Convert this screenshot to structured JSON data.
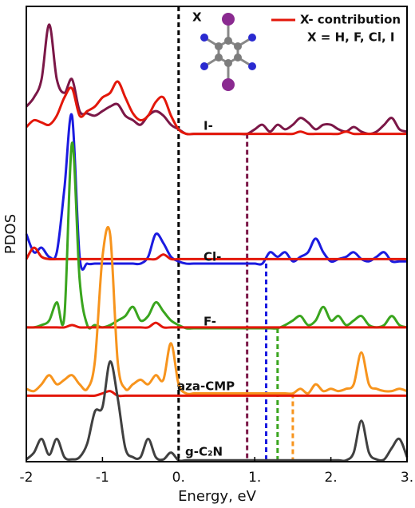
{
  "chart_data": {
    "type": "line",
    "xlabel": "Energy, eV",
    "ylabel": "PDOS",
    "xlim": [
      -2,
      3
    ],
    "ylim": [
      0,
      100
    ],
    "xticks": [
      -2,
      -1,
      {
        "value": 0,
        "label": "0."
      },
      {
        "value": 1,
        "label": "1."
      },
      {
        "value": 2,
        "label": "2."
      },
      {
        "value": 3,
        "label": "3."
      }
    ],
    "fermi_level": 0,
    "legend": {
      "label": "X- contribution",
      "color": "#e3170a"
    },
    "annotation": "X = H, F, Cl, I",
    "molecule_label": "X",
    "x": [
      -2.0,
      -1.9,
      -1.8,
      -1.7,
      -1.6,
      -1.5,
      -1.4,
      -1.3,
      -1.2,
      -1.1,
      -1.0,
      -0.9,
      -0.8,
      -0.7,
      -0.6,
      -0.5,
      -0.4,
      -0.3,
      -0.2,
      -0.1,
      0.0,
      0.1,
      0.2,
      0.3,
      0.4,
      0.5,
      0.6,
      0.7,
      0.8,
      0.9,
      1.0,
      1.1,
      1.2,
      1.3,
      1.4,
      1.5,
      1.6,
      1.7,
      1.8,
      1.9,
      2.0,
      2.1,
      2.2,
      2.3,
      2.4,
      2.5,
      2.6,
      2.7,
      2.8,
      2.9,
      3.0
    ],
    "series": [
      {
        "name": "I-",
        "color": "#7b1747",
        "edge": 0.9,
        "values": [
          78,
          80,
          84,
          96,
          84,
          81,
          84,
          77,
          76.5,
          76,
          77,
          78,
          78.5,
          76,
          75,
          74,
          76,
          77,
          76,
          74,
          73,
          72,
          72,
          72,
          72,
          72,
          72,
          72,
          72,
          72,
          73,
          74,
          72.5,
          74,
          73,
          74,
          75.5,
          74.5,
          73,
          74,
          74,
          73,
          72.5,
          73.5,
          72.5,
          72,
          72.5,
          74,
          75.5,
          73,
          72.5
        ],
        "contribution": [
          73.5,
          75,
          74.5,
          74,
          76,
          80,
          82,
          76,
          77,
          78,
          80,
          81,
          83.5,
          80,
          76.5,
          75,
          76,
          79,
          80,
          76,
          73,
          72,
          72,
          72,
          72,
          72,
          72,
          72,
          72,
          72,
          72,
          72,
          72,
          72,
          72,
          72,
          72.5,
          72,
          72,
          72,
          72,
          72,
          72.5,
          72,
          72,
          72,
          72,
          72,
          72,
          72,
          72
        ]
      },
      {
        "name": "Cl-",
        "color": "#1b1be0",
        "edge": 1.15,
        "values": [
          50,
          46,
          47,
          45,
          46,
          60,
          76,
          45,
          43.5,
          43.5,
          43.5,
          43.5,
          43.5,
          43.5,
          43.5,
          43.5,
          45,
          50,
          48,
          45,
          44,
          43.5,
          43.5,
          43.5,
          43.5,
          43.5,
          43.5,
          43.5,
          43.5,
          43.5,
          43.5,
          43.5,
          46,
          45,
          46,
          44,
          45,
          46,
          49,
          46,
          44,
          44.5,
          45,
          46,
          44.5,
          44,
          45,
          46,
          44,
          44,
          44
        ],
        "contribution": [
          44.5,
          47,
          45,
          44.5,
          44.5,
          44.5,
          44.5,
          44.5,
          44.5,
          44.5,
          44.5,
          44.5,
          44.5,
          44.5,
          44.5,
          44.5,
          44.5,
          44.5,
          45.5,
          44.5,
          44.5,
          44.5,
          44.5,
          44.5,
          44.5,
          44.5,
          44.5,
          44.5,
          44.5,
          44.5,
          44.5,
          44.5,
          44.5,
          44.5,
          44.5,
          44.5,
          44.5,
          44.5,
          44.5,
          44.5,
          44.5,
          44.5,
          44.5,
          44.5,
          44.5,
          44.5,
          44.5,
          44.5,
          44.5,
          44.5,
          44.5
        ]
      },
      {
        "name": "F-",
        "color": "#3aa51e",
        "edge": 1.3,
        "values": [
          29.5,
          29.5,
          30,
          31,
          35,
          32,
          70,
          40,
          30,
          30,
          29.5,
          30,
          31,
          32,
          34,
          31,
          32,
          35,
          33,
          31,
          30,
          29.3,
          29.3,
          29.3,
          29.3,
          29.3,
          29.3,
          29.3,
          29.3,
          29.3,
          29.3,
          29.3,
          29.3,
          29.3,
          30,
          31,
          32,
          30,
          31,
          34,
          31,
          32,
          30,
          31,
          32,
          30,
          29.5,
          30,
          32,
          30,
          29.5
        ],
        "contribution": [
          29.5,
          29.5,
          29.5,
          29.5,
          29.5,
          29.5,
          30,
          29.5,
          29.5,
          29.5,
          29.5,
          29.5,
          29.5,
          29.5,
          29.5,
          29.5,
          29.5,
          30.5,
          29.5,
          29.5,
          29.5,
          29.5,
          29.5,
          29.5,
          29.5,
          29.5,
          29.5,
          29.5,
          29.5,
          29.5,
          29.5,
          29.5,
          29.5,
          29.5,
          29.5,
          29.5,
          29.5,
          29.5,
          29.5,
          29.5,
          29.5,
          29.5,
          29.5,
          29.5,
          29.5,
          29.5,
          29.5,
          29.5,
          29.5,
          29.5,
          29.5
        ]
      },
      {
        "name": "aza-CMP",
        "color": "#f7941d",
        "edge": 1.5,
        "values": [
          16,
          15.5,
          17,
          19,
          17,
          18,
          19,
          17,
          16,
          22,
          45,
          50,
          22,
          16,
          17,
          18,
          17,
          19,
          18,
          26,
          17,
          15,
          15,
          15,
          15,
          15,
          15,
          15,
          15,
          15,
          15,
          15,
          15,
          15,
          15,
          15,
          16,
          15,
          17,
          15.5,
          16,
          15.5,
          16,
          17,
          24,
          17,
          16,
          15.5,
          15.5,
          16,
          15.5
        ],
        "contribution": [
          14.5,
          14.5,
          14.5,
          14.5,
          14.5,
          14.5,
          14.5,
          14.5,
          14.5,
          14.5,
          15,
          15.5,
          14.5,
          14.5,
          14.5,
          14.5,
          14.5,
          14.5,
          14.5,
          14.5,
          14.5,
          14.5,
          14.5,
          14.5,
          14.5,
          14.5,
          14.5,
          14.5,
          14.5,
          14.5,
          14.5,
          14.5,
          14.5,
          14.5,
          14.5,
          14.5,
          14.5,
          14.5,
          14.5,
          14.5,
          14.5,
          14.5,
          14.5,
          14.5,
          14.5,
          14.5,
          14.5,
          14.5,
          14.5,
          14.5,
          14.5
        ]
      },
      {
        "name": "g-C₂N",
        "color": "#404040",
        "values": [
          0.5,
          2,
          5,
          1.5,
          5,
          1,
          0.5,
          1,
          4,
          11,
          12,
          22,
          14,
          3,
          1,
          1,
          5,
          1,
          0.5,
          2,
          0.3,
          0.3,
          0.3,
          0.3,
          0.3,
          0.3,
          0.3,
          0.3,
          0.3,
          0.3,
          0.3,
          0.3,
          0.3,
          0.3,
          0.3,
          0.3,
          0.3,
          0.3,
          0.3,
          0.3,
          0.3,
          0.3,
          0.3,
          2,
          9,
          2,
          0.5,
          0.5,
          3,
          5,
          1
        ]
      }
    ]
  }
}
